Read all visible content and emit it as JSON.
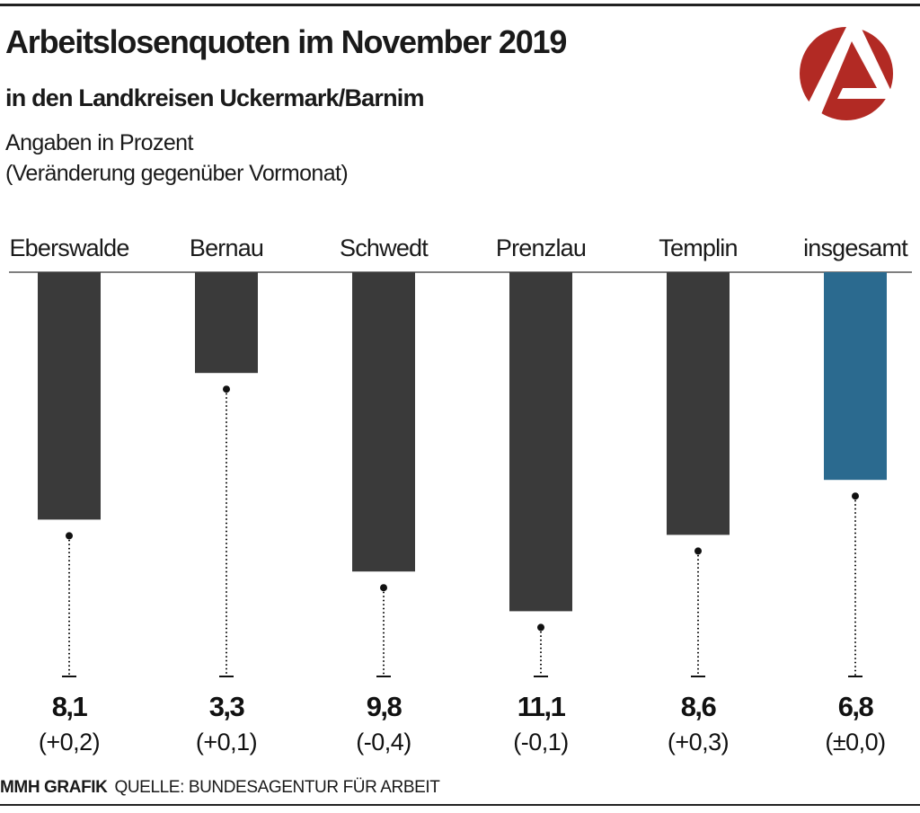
{
  "title": "Arbeitslosenquoten im November 2019",
  "subtitle": "in den Landkreisen Uckermark/Barnim",
  "unit_note": "Angaben in Prozent",
  "change_note": "(Veränderung gegenüber Vormonat)",
  "logo": {
    "name": "bundesagentur-fuer-arbeit-logo",
    "color": "#b22a24"
  },
  "footer": {
    "credit": "MMH GRAFIK",
    "source": "QUELLE: BUNDESAGENTUR FÜR ARBEIT"
  },
  "chart_data": {
    "type": "bar",
    "orientation": "downward-from-top",
    "categories": [
      "Eberswalde",
      "Bernau",
      "Schwedt",
      "Prenzlau",
      "Templin",
      "insgesamt"
    ],
    "values": [
      8.1,
      3.3,
      9.8,
      11.1,
      8.6,
      6.8
    ],
    "value_labels": [
      "8,1",
      "3,3",
      "9,8",
      "11,1",
      "8,6",
      "6,8"
    ],
    "change_labels": [
      "(+0,2)",
      "(+0,1)",
      "(-0,4)",
      "(-0,1)",
      "(+0,3)",
      "(±0,0)"
    ],
    "colors": {
      "bar": "#3a3a3a",
      "total_bar": "#2b6a8f"
    },
    "grid": false,
    "ylim": [
      0,
      11.1
    ]
  }
}
